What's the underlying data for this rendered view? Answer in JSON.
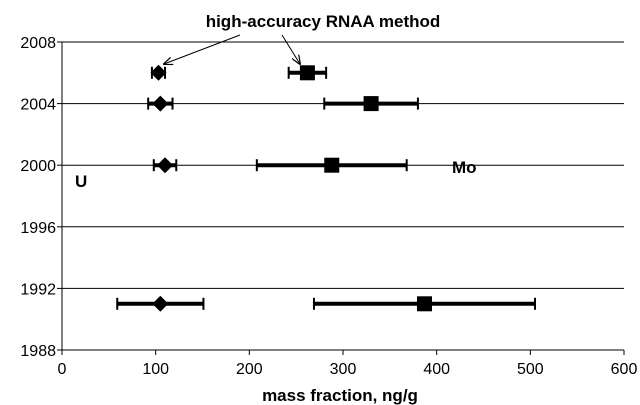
{
  "chart_data": {
    "type": "scatter",
    "title": "",
    "xlabel": "mass fraction, ng/g",
    "ylabel": "",
    "xlim": [
      0,
      600
    ],
    "ylim": [
      1988,
      2008
    ],
    "xticks": [
      0,
      100,
      200,
      300,
      400,
      500,
      600
    ],
    "yticks": [
      1988,
      1992,
      1996,
      2000,
      2004,
      2008
    ],
    "grid": "horizontal",
    "series": [
      {
        "name": "U",
        "marker": "diamond",
        "points": [
          {
            "x": 103,
            "y": 2006,
            "err": 7
          },
          {
            "x": 105,
            "y": 2004,
            "err": 13
          },
          {
            "x": 110,
            "y": 2000,
            "err": 12
          },
          {
            "x": 105,
            "y": 1991,
            "err": 46
          }
        ]
      },
      {
        "name": "Mo",
        "marker": "square",
        "points": [
          {
            "x": 262,
            "y": 2006,
            "err": 20
          },
          {
            "x": 330,
            "y": 2004,
            "err": 50
          },
          {
            "x": 288,
            "y": 2000,
            "err": 80
          },
          {
            "x": 387,
            "y": 1991,
            "err": 118
          }
        ]
      }
    ],
    "annotations": {
      "method_label": "high-accuracy RNAA method",
      "u_label": "U",
      "mo_label": "Mo"
    },
    "colors": {
      "marks": "#000000",
      "grid": "#000000"
    }
  }
}
